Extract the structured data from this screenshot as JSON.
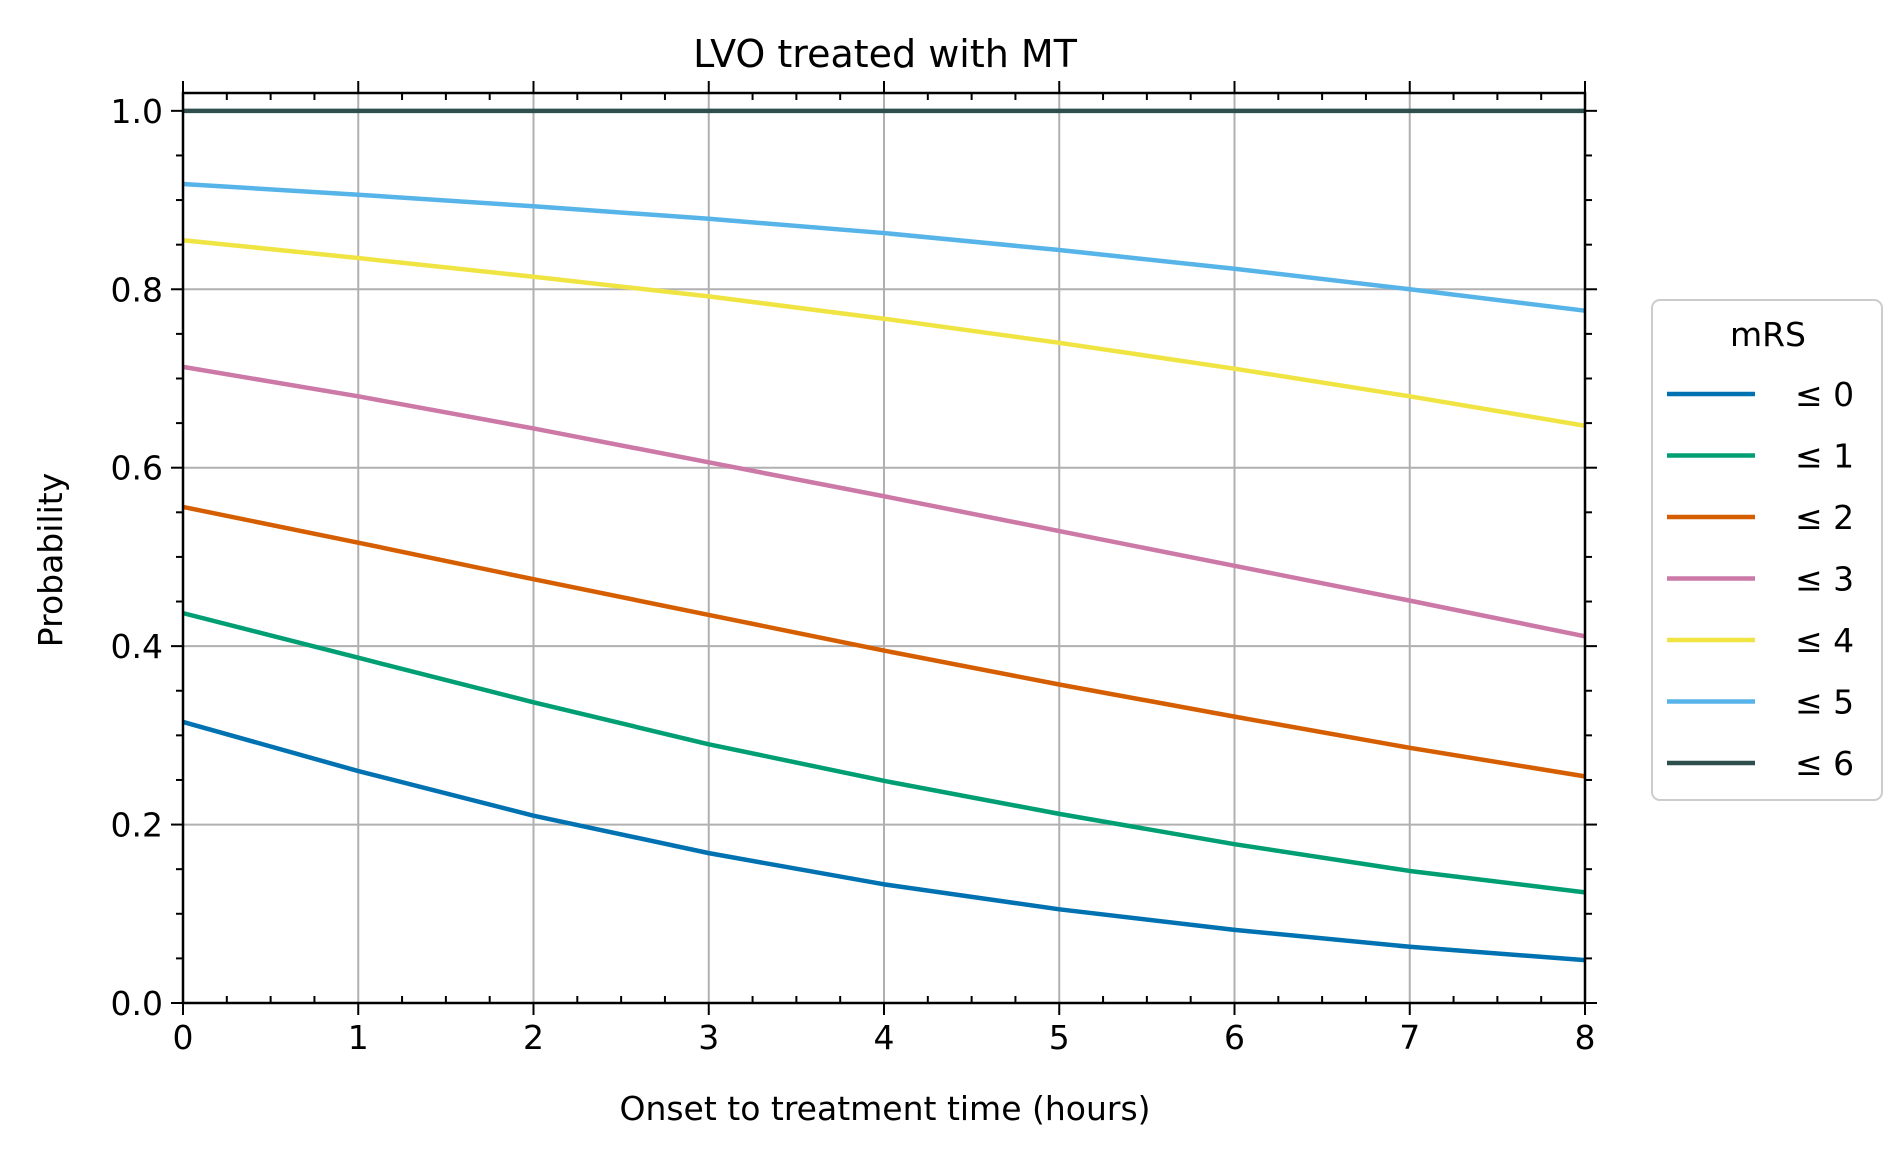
{
  "chart_data": {
    "type": "line",
    "title": "LVO treated with MT",
    "xlabel": "Onset to treatment time (hours)",
    "ylabel": "Probability",
    "xlim": [
      0,
      8
    ],
    "ylim": [
      0.0,
      1.02
    ],
    "x_ticks": [
      "0",
      "1",
      "2",
      "3",
      "4",
      "5",
      "6",
      "7",
      "8"
    ],
    "y_ticks": [
      "0.0",
      "0.2",
      "0.4",
      "0.6",
      "0.8",
      "1.0"
    ],
    "grid": true,
    "legend": {
      "title": "mRS",
      "placement": "right, outside plot"
    },
    "x": [
      0,
      1,
      2,
      3,
      4,
      5,
      6,
      7,
      8
    ],
    "series": [
      {
        "name": "≤ 0",
        "color": "#0072b2",
        "values": [
          0.315,
          0.26,
          0.21,
          0.168,
          0.133,
          0.105,
          0.082,
          0.063,
          0.048
        ]
      },
      {
        "name": "≤ 1",
        "color": "#009e73",
        "values": [
          0.437,
          0.387,
          0.337,
          0.29,
          0.249,
          0.212,
          0.178,
          0.148,
          0.124
        ]
      },
      {
        "name": "≤ 2",
        "color": "#d55e00",
        "values": [
          0.556,
          0.516,
          0.475,
          0.435,
          0.395,
          0.357,
          0.321,
          0.286,
          0.254
        ]
      },
      {
        "name": "≤ 3",
        "color": "#cc79a7",
        "values": [
          0.713,
          0.68,
          0.644,
          0.606,
          0.568,
          0.529,
          0.49,
          0.451,
          0.411
        ]
      },
      {
        "name": "≤ 4",
        "color": "#f0e442",
        "values": [
          0.855,
          0.835,
          0.814,
          0.792,
          0.767,
          0.74,
          0.711,
          0.68,
          0.647
        ]
      },
      {
        "name": "≤ 5",
        "color": "#56b4e9",
        "values": [
          0.918,
          0.906,
          0.893,
          0.879,
          0.863,
          0.844,
          0.823,
          0.8,
          0.776
        ]
      },
      {
        "name": "≤ 6",
        "color": "#2f4f4f",
        "values": [
          1.0,
          1.0,
          1.0,
          1.0,
          1.0,
          1.0,
          1.0,
          1.0,
          1.0
        ]
      }
    ]
  }
}
